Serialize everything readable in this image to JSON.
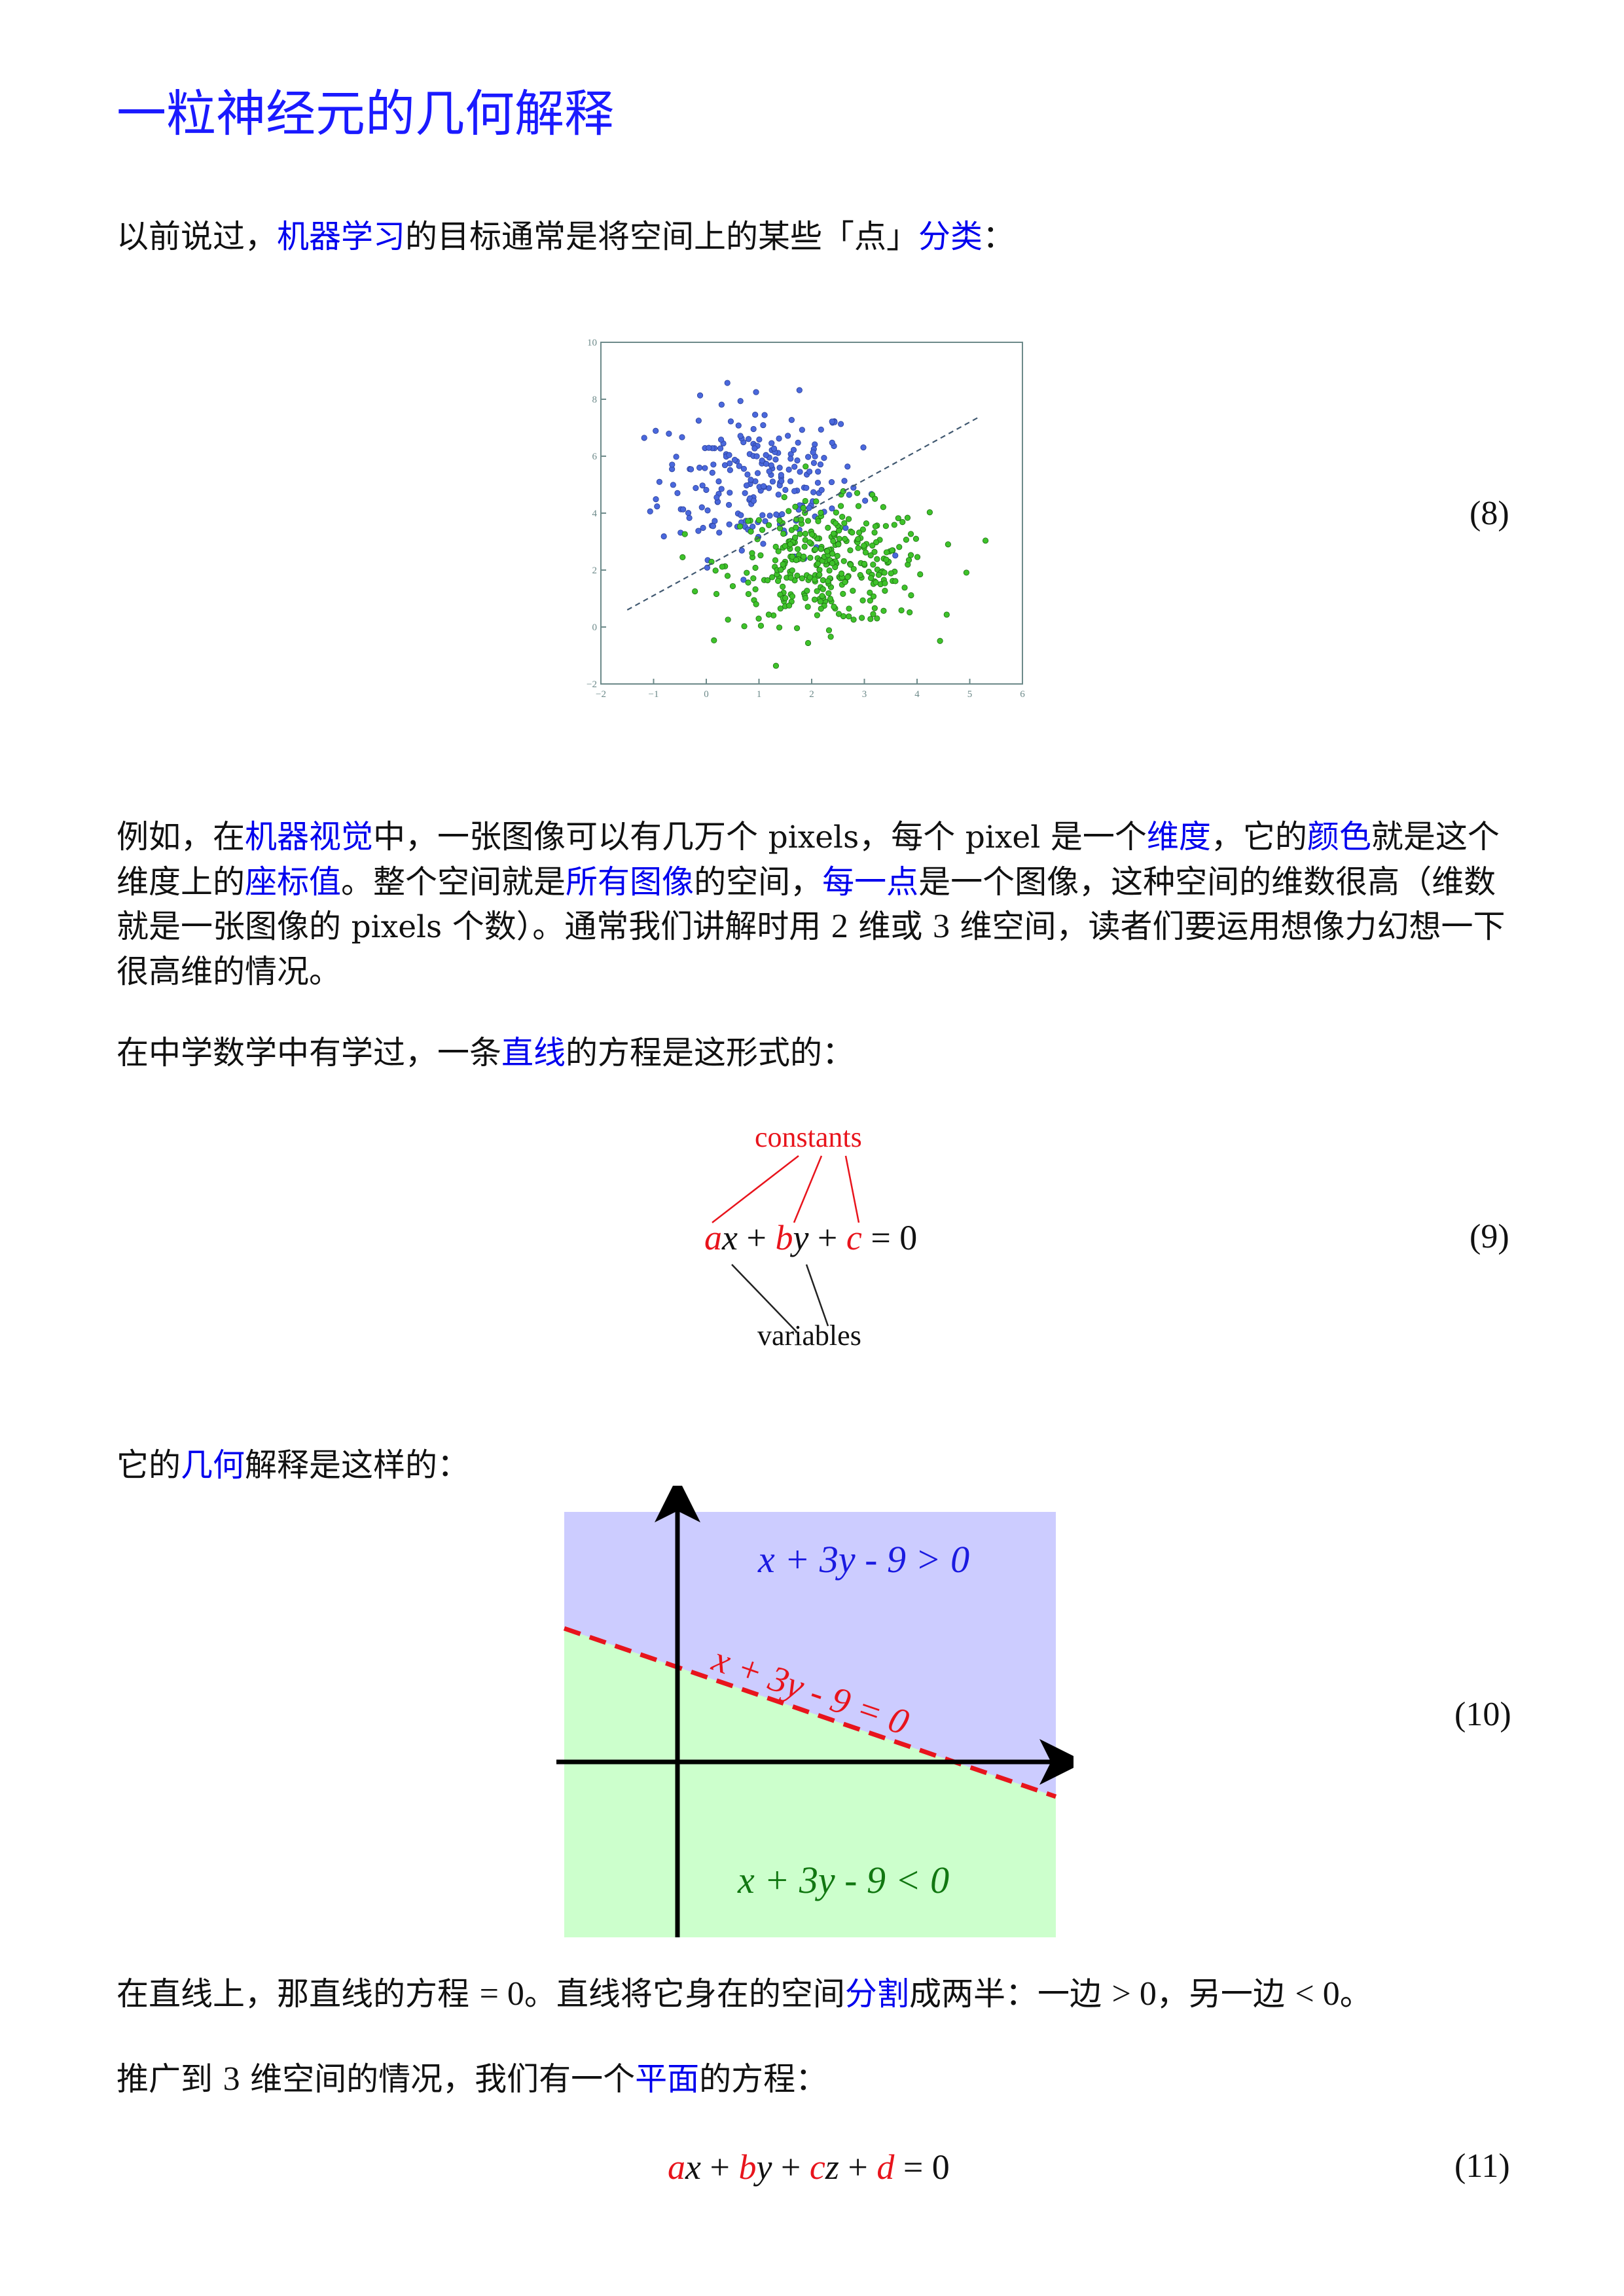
{
  "title": "一粒神经元的几何解释",
  "p1": {
    "t1": "以前说过，",
    "l1": "机器学习",
    "t2": "的目标通常是将空间上的某些「点」",
    "l2": "分类",
    "t3": "："
  },
  "scatter": {
    "eq_number": "(8)",
    "x_ticks": [
      "−2",
      "−1",
      "0",
      "1",
      "2",
      "3",
      "4",
      "5",
      "6"
    ],
    "y_ticks": [
      "−2",
      "0",
      "2",
      "4",
      "6",
      "8",
      "10"
    ],
    "colors": {
      "blue": "#4a68dc",
      "green": "#3ec22a",
      "line": "#405870",
      "axes": "#6d8a8a"
    }
  },
  "p2": {
    "t1": "例如，在",
    "l1": "机器视觉",
    "t2": "中，一张图像可以有几万个 ",
    "s1": "pixels",
    "t3": "，每个 ",
    "s2": "pixel",
    "t4": " 是一个",
    "l2": "维度",
    "t5": "，它的",
    "l3": "颜色",
    "t6": "就是这个维度上的",
    "l4": "座标值",
    "t7": "。整个空间就是",
    "l5": "所有图像",
    "t8": "的空间，",
    "l6": "每一点",
    "t9": "是一个图像，这种空间的维数很高（维数就是一张图像的 ",
    "s3": "pixels",
    "t10": " 个数）。通常我们讲解时用 ",
    "n1": "2",
    "t11": " 维或 ",
    "n2": "3",
    "t12": " 维空间，读者们要运用想像力幻想一下很高维的情况。"
  },
  "p3": {
    "t1": "在中学数学中有学过，一条",
    "l1": "直线",
    "t2": "的方程是这形式的："
  },
  "eq9": {
    "number": "(9)",
    "constants_label": "constants",
    "variables_label": "variables",
    "a": "a",
    "x": "x",
    "plus1": " + ",
    "b": "b",
    "y": "y",
    "plus2": " + ",
    "c": "c",
    "eq": " = 0"
  },
  "p4": {
    "t1": "它的",
    "l1": "几何",
    "t2": "解释是这样的："
  },
  "eq10": {
    "number": "(10)",
    "upper_label": "x + 3y - 9 > 0",
    "line_label": "x + 3y - 9 = 0",
    "lower_label": "x + 3y - 9 < 0",
    "colors": {
      "upper": "#ccccff",
      "lower": "#ccffcc",
      "line": "#e8141c",
      "upper_text": "#1a1ae0",
      "lower_text": "#117711"
    }
  },
  "p5": {
    "t1": "在直线上，那直线的方程 ",
    "m1": "= 0",
    "t2": "。直线将它身在的空间",
    "l1": "分割",
    "t3": "成两半：一边 ",
    "m2": "> 0",
    "t4": "，另一边 ",
    "m3": "< 0",
    "t5": "。"
  },
  "p6": {
    "t1": "推广到 ",
    "n1": "3",
    "t2": " 维空间的情况，我们有一个",
    "l1": "平面",
    "t3": "的方程："
  },
  "eq11": {
    "number": "(11)",
    "a": "a",
    "x": "x",
    "plus1": " + ",
    "b": "b",
    "y": "y",
    "plus2": " + ",
    "c": "c",
    "z": "z",
    "plus3": " + ",
    "d": "d",
    "eq": " = 0"
  }
}
